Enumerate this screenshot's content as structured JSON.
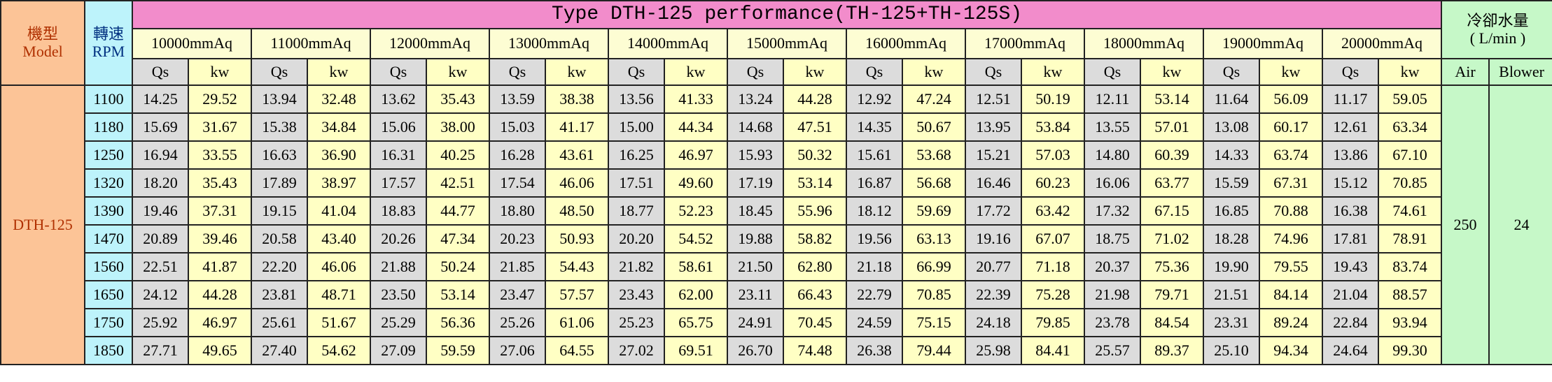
{
  "header": {
    "model": "機型\nModel",
    "rpm": "轉速\nRPM",
    "title": "Type DTH-125 performance(TH-125+TH-125S)",
    "cooling": "冷卻水量\n( L/min )",
    "pressures": [
      "10000mmAq",
      "11000mmAq",
      "12000mmAq",
      "13000mmAq",
      "14000mmAq",
      "15000mmAq",
      "16000mmAq",
      "17000mmAq",
      "18000mmAq",
      "19000mmAq",
      "20000mmAq"
    ],
    "sub": [
      "Qs",
      "kw"
    ],
    "air": "Air",
    "blower": "Blower"
  },
  "table": {
    "model": "DTH-125",
    "air": "250",
    "blower": "24",
    "rows": [
      {
        "rpm": "1100",
        "values": [
          "14.25",
          "29.52",
          "13.94",
          "32.48",
          "13.62",
          "35.43",
          "13.59",
          "38.38",
          "13.56",
          "41.33",
          "13.24",
          "44.28",
          "12.92",
          "47.24",
          "12.51",
          "50.19",
          "12.11",
          "53.14",
          "11.64",
          "56.09",
          "11.17",
          "59.05"
        ]
      },
      {
        "rpm": "1180",
        "values": [
          "15.69",
          "31.67",
          "15.38",
          "34.84",
          "15.06",
          "38.00",
          "15.03",
          "41.17",
          "15.00",
          "44.34",
          "14.68",
          "47.51",
          "14.35",
          "50.67",
          "13.95",
          "53.84",
          "13.55",
          "57.01",
          "13.08",
          "60.17",
          "12.61",
          "63.34"
        ]
      },
      {
        "rpm": "1250",
        "values": [
          "16.94",
          "33.55",
          "16.63",
          "36.90",
          "16.31",
          "40.25",
          "16.28",
          "43.61",
          "16.25",
          "46.97",
          "15.93",
          "50.32",
          "15.61",
          "53.68",
          "15.21",
          "57.03",
          "14.80",
          "60.39",
          "14.33",
          "63.74",
          "13.86",
          "67.10"
        ]
      },
      {
        "rpm": "1320",
        "values": [
          "18.20",
          "35.43",
          "17.89",
          "38.97",
          "17.57",
          "42.51",
          "17.54",
          "46.06",
          "17.51",
          "49.60",
          "17.19",
          "53.14",
          "16.87",
          "56.68",
          "16.46",
          "60.23",
          "16.06",
          "63.77",
          "15.59",
          "67.31",
          "15.12",
          "70.85"
        ]
      },
      {
        "rpm": "1390",
        "values": [
          "19.46",
          "37.31",
          "19.15",
          "41.04",
          "18.83",
          "44.77",
          "18.80",
          "48.50",
          "18.77",
          "52.23",
          "18.45",
          "55.96",
          "18.12",
          "59.69",
          "17.72",
          "63.42",
          "17.32",
          "67.15",
          "16.85",
          "70.88",
          "16.38",
          "74.61"
        ]
      },
      {
        "rpm": "1470",
        "values": [
          "20.89",
          "39.46",
          "20.58",
          "43.40",
          "20.26",
          "47.34",
          "20.23",
          "50.93",
          "20.20",
          "54.52",
          "19.88",
          "58.82",
          "19.56",
          "63.13",
          "19.16",
          "67.07",
          "18.75",
          "71.02",
          "18.28",
          "74.96",
          "17.81",
          "78.91"
        ]
      },
      {
        "rpm": "1560",
        "values": [
          "22.51",
          "41.87",
          "22.20",
          "46.06",
          "21.88",
          "50.24",
          "21.85",
          "54.43",
          "21.82",
          "58.61",
          "21.50",
          "62.80",
          "21.18",
          "66.99",
          "20.77",
          "71.18",
          "20.37",
          "75.36",
          "19.90",
          "79.55",
          "19.43",
          "83.74"
        ]
      },
      {
        "rpm": "1650",
        "values": [
          "24.12",
          "44.28",
          "23.81",
          "48.71",
          "23.50",
          "53.14",
          "23.47",
          "57.57",
          "23.43",
          "62.00",
          "23.11",
          "66.43",
          "22.79",
          "70.85",
          "22.39",
          "75.28",
          "21.98",
          "79.71",
          "21.51",
          "84.14",
          "21.04",
          "88.57"
        ]
      },
      {
        "rpm": "1750",
        "values": [
          "25.92",
          "46.97",
          "25.61",
          "51.67",
          "25.29",
          "56.36",
          "25.26",
          "61.06",
          "25.23",
          "65.75",
          "24.91",
          "70.45",
          "24.59",
          "75.15",
          "24.18",
          "79.85",
          "23.78",
          "84.54",
          "23.31",
          "89.24",
          "22.84",
          "93.94"
        ]
      },
      {
        "rpm": "1850",
        "values": [
          "27.71",
          "49.65",
          "27.40",
          "54.62",
          "27.09",
          "59.59",
          "27.06",
          "64.55",
          "27.02",
          "69.51",
          "26.70",
          "74.48",
          "26.38",
          "79.44",
          "25.98",
          "84.41",
          "25.57",
          "89.37",
          "25.10",
          "94.34",
          "24.64",
          "99.30"
        ]
      }
    ]
  }
}
